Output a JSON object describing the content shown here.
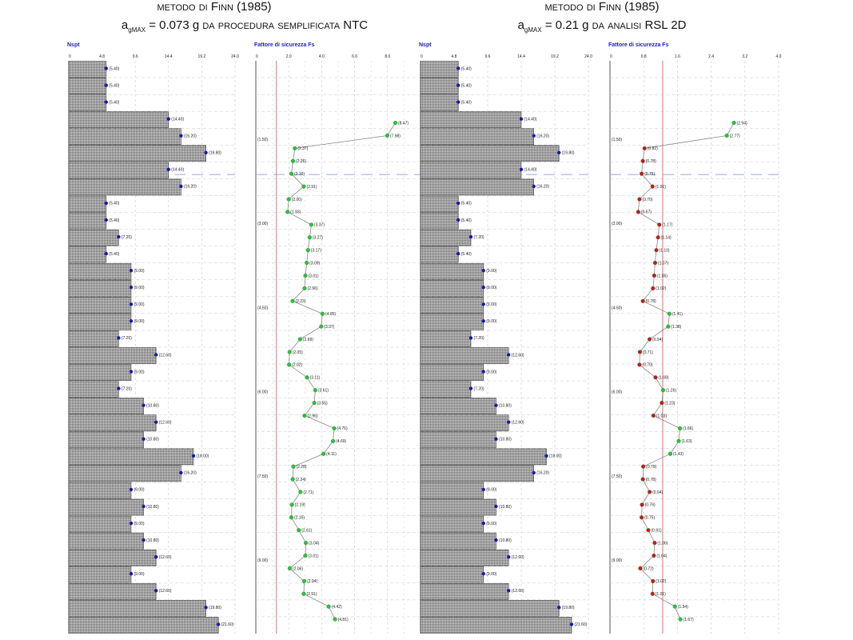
{
  "colors": {
    "axis_title": "#1a1adc",
    "bar_fill": "#9a9a9a",
    "bar_dot": "#1a1aa8",
    "fs_safe": "#27c43a",
    "fs_unsafe": "#c31c1c",
    "fs_line": "#888888",
    "threshold": "#e28a8a",
    "grid": "#c8c8c8",
    "water_table": "#9aa8ee"
  },
  "headers": [
    {
      "line1_a": "metodo di ",
      "line1_b": "Finn",
      "line1_c": " (1985)",
      "a": "a",
      "sub": "gMAX",
      "eq": " = 0.073 g ",
      "tail": "da procedura semplificata NTC"
    },
    {
      "line1_a": "metodo di ",
      "line1_b": "Finn",
      "line1_c": " (1985)",
      "a": "a",
      "sub": "gMAX",
      "eq": " = 0.21 g ",
      "tail": "da analisi RSL 2D"
    }
  ],
  "chart_data": [
    {
      "type": "bar",
      "orientation": "horizontal",
      "title": "Nspt",
      "xlim": [
        0,
        24
      ],
      "ticks": [
        "0",
        "4.8",
        "9.6",
        "14.4",
        "19.2",
        "24.0"
      ],
      "depth_labels": [
        "(1.50)",
        "(3.00)",
        "(4.50)",
        "(6.00)",
        "(7.50)",
        "(9.00)"
      ],
      "values": [
        5.4,
        5.4,
        5.4,
        14.4,
        16.2,
        19.8,
        14.4,
        16.2,
        5.4,
        5.4,
        7.2,
        5.4,
        9.0,
        9.0,
        9.0,
        9.0,
        7.2,
        12.6,
        9.0,
        7.2,
        10.8,
        12.6,
        10.8,
        18.0,
        16.2,
        9.0,
        10.8,
        9.0,
        10.8,
        12.6,
        9.0,
        12.6,
        19.8,
        21.6
      ],
      "labels": [
        "(5.40)",
        "(5.40)",
        "(5.40)",
        "(14.40)",
        "(16.20)",
        "(19.80)",
        "(14.40)",
        "(16.20)",
        "(5.40)",
        "(5.40)",
        "(7.20)",
        "(5.40)",
        "(9.00)",
        "(9.00)",
        "(9.00)",
        "(9.00)",
        "(7.20)",
        "(12.60)",
        "(9.00)",
        "(7.20)",
        "(10.80)",
        "(12.60)",
        "(10.80)",
        "(18.00)",
        "(16.20)",
        "(9.00)",
        "(10.80)",
        "(9.00)",
        "(10.80)",
        "(12.60)",
        "(9.00)",
        "(12.60)",
        "(19.80)",
        "(21.60)"
      ]
    },
    {
      "type": "line",
      "title": "Fattore di sicurezza Fs",
      "xlim": [
        0,
        10
      ],
      "threshold": 1.25,
      "ticks": [
        "0",
        "2.0",
        "4.0",
        "6.0",
        "8.0"
      ],
      "depth_labels": [
        "(1.50)",
        "(3.00)",
        "(4.50)",
        "(6.00)",
        "(7.50)",
        "(9.00)"
      ],
      "points": [
        {
          "d": 0.39,
          "v": 8.47,
          "l": "(8.47)"
        },
        {
          "d": 0.47,
          "v": 7.98,
          "l": "(7.98)"
        },
        {
          "d": 0.55,
          "v": 2.37,
          "l": "(2.37)"
        },
        {
          "d": 0.63,
          "v": 2.26,
          "l": "(2.26)"
        },
        {
          "d": 0.71,
          "v": 2.16,
          "l": "(2.16)"
        },
        {
          "d": 0.79,
          "v": 2.91,
          "l": "(2.91)"
        },
        {
          "d": 0.87,
          "v": 2.0,
          "l": "(2.00)"
        },
        {
          "d": 0.95,
          "v": 1.93,
          "l": "(1.93)"
        },
        {
          "d": 1.03,
          "v": 3.37,
          "l": "(3.37)"
        },
        {
          "d": 1.11,
          "v": 3.27,
          "l": "(3.27)"
        },
        {
          "d": 1.19,
          "v": 3.17,
          "l": "(3.17)"
        },
        {
          "d": 1.27,
          "v": 3.09,
          "l": "(3.09)"
        },
        {
          "d": 1.35,
          "v": 3.01,
          "l": "(3.01)"
        },
        {
          "d": 1.43,
          "v": 2.96,
          "l": "(2.96)"
        },
        {
          "d": 1.51,
          "v": 2.23,
          "l": "(2.23)"
        },
        {
          "d": 1.59,
          "v": 4.05,
          "l": "(4.05)"
        },
        {
          "d": 1.67,
          "v": 3.97,
          "l": "(3.97)"
        },
        {
          "d": 1.75,
          "v": 2.69,
          "l": "(2.69)"
        },
        {
          "d": 1.83,
          "v": 2.05,
          "l": "(2.05)"
        },
        {
          "d": 1.91,
          "v": 2.02,
          "l": "(2.02)"
        },
        {
          "d": 1.99,
          "v": 3.11,
          "l": "(3.11)"
        },
        {
          "d": 2.07,
          "v": 3.61,
          "l": "(3.61)"
        },
        {
          "d": 2.15,
          "v": 3.55,
          "l": "(3.55)"
        },
        {
          "d": 2.23,
          "v": 2.96,
          "l": "(2.96)"
        },
        {
          "d": 2.31,
          "v": 4.76,
          "l": "(4.76)"
        },
        {
          "d": 2.39,
          "v": 4.69,
          "l": "(4.69)"
        },
        {
          "d": 2.47,
          "v": 4.11,
          "l": "(4.11)"
        },
        {
          "d": 2.55,
          "v": 2.28,
          "l": "(2.28)"
        },
        {
          "d": 2.63,
          "v": 2.24,
          "l": "(2.24)"
        },
        {
          "d": 2.71,
          "v": 2.71,
          "l": "(2.71)"
        },
        {
          "d": 2.79,
          "v": 2.19,
          "l": "(2.19)"
        },
        {
          "d": 2.87,
          "v": 2.16,
          "l": "(2.16)"
        },
        {
          "d": 2.95,
          "v": 2.61,
          "l": "(2.61)"
        },
        {
          "d": 3.03,
          "v": 3.04,
          "l": "(3.04)"
        },
        {
          "d": 3.11,
          "v": 3.01,
          "l": "(3.01)"
        },
        {
          "d": 3.19,
          "v": 2.06,
          "l": "(2.06)"
        },
        {
          "d": 3.27,
          "v": 2.94,
          "l": "(2.94)"
        },
        {
          "d": 3.35,
          "v": 2.91,
          "l": "(2.91)"
        },
        {
          "d": 3.43,
          "v": 4.42,
          "l": "(4.42)"
        },
        {
          "d": 3.51,
          "v": 4.81,
          "l": "(4.81)"
        }
      ]
    },
    {
      "type": "bar",
      "orientation": "horizontal",
      "title": "Nspt",
      "xlim": [
        0,
        24
      ],
      "ticks": [
        "0",
        "4.8",
        "9.6",
        "14.4",
        "19.2",
        "24.0"
      ],
      "depth_labels": [
        "(1.50)",
        "(3.00)",
        "(4.50)",
        "(6.00)",
        "(7.50)",
        "(9.00)"
      ],
      "values": [
        5.4,
        5.4,
        5.4,
        14.4,
        16.2,
        19.8,
        14.4,
        16.2,
        5.4,
        5.4,
        7.2,
        5.4,
        9.0,
        9.0,
        9.0,
        9.0,
        7.2,
        12.6,
        9.0,
        7.2,
        10.8,
        12.6,
        10.8,
        18.0,
        16.2,
        9.0,
        10.8,
        9.0,
        10.8,
        12.6,
        9.0,
        12.6,
        19.8,
        21.6
      ],
      "labels": [
        "(5.40)",
        "(5.40)",
        "(5.40)",
        "(14.40)",
        "(16.20)",
        "(19.80)",
        "(14.40)",
        "(16.20)",
        "(5.40)",
        "(5.40)",
        "(7.20)",
        "(5.40)",
        "(9.00)",
        "(9.00)",
        "(9.00)",
        "(9.00)",
        "(7.20)",
        "(12.60)",
        "(9.00)",
        "(7.20)",
        "(10.80)",
        "(12.60)",
        "(10.80)",
        "(18.00)",
        "(16.20)",
        "(9.00)",
        "(10.80)",
        "(9.00)",
        "(10.80)",
        "(12.60)",
        "(9.00)",
        "(12.60)",
        "(19.80)",
        "(21.60)"
      ]
    },
    {
      "type": "line",
      "title": "Fattore di sicurezza Fs",
      "xlim": [
        0,
        4
      ],
      "threshold": 1.25,
      "ticks": [
        "0",
        "0.8",
        "1.6",
        "2.4",
        "3.2",
        "4.0"
      ],
      "depth_labels": [
        "(1.50)",
        "(3.00)",
        "(4.50)",
        "(6.00)",
        "(7.50)",
        "(9.00)"
      ],
      "points": [
        {
          "d": 0.39,
          "v": 2.94,
          "l": "(2.94)"
        },
        {
          "d": 0.47,
          "v": 2.77,
          "l": "(2.77)"
        },
        {
          "d": 0.55,
          "v": 0.82,
          "l": "(0.82)"
        },
        {
          "d": 0.63,
          "v": 0.78,
          "l": "(0.78)"
        },
        {
          "d": 0.71,
          "v": 0.75,
          "l": "(0.75)"
        },
        {
          "d": 0.79,
          "v": 1.01,
          "l": "(1.01)"
        },
        {
          "d": 0.87,
          "v": 0.7,
          "l": "(0.70)"
        },
        {
          "d": 0.95,
          "v": 0.67,
          "l": "(0.67)"
        },
        {
          "d": 1.03,
          "v": 1.17,
          "l": "(1.17)"
        },
        {
          "d": 1.11,
          "v": 1.14,
          "l": "(1.14)"
        },
        {
          "d": 1.19,
          "v": 1.1,
          "l": "(1.10)"
        },
        {
          "d": 1.27,
          "v": 1.07,
          "l": "(1.07)"
        },
        {
          "d": 1.35,
          "v": 1.05,
          "l": "(1.05)"
        },
        {
          "d": 1.43,
          "v": 1.02,
          "l": "(1.02)"
        },
        {
          "d": 1.51,
          "v": 0.78,
          "l": "(0.78)"
        },
        {
          "d": 1.59,
          "v": 1.41,
          "l": "(1.41)"
        },
        {
          "d": 1.67,
          "v": 1.38,
          "l": "(1.38)"
        },
        {
          "d": 1.75,
          "v": 0.94,
          "l": "(0.94)"
        },
        {
          "d": 1.83,
          "v": 0.71,
          "l": "(0.71)"
        },
        {
          "d": 1.91,
          "v": 0.7,
          "l": "(0.70)"
        },
        {
          "d": 1.99,
          "v": 1.08,
          "l": "(1.08)"
        },
        {
          "d": 2.07,
          "v": 1.26,
          "l": "(1.26)"
        },
        {
          "d": 2.15,
          "v": 1.23,
          "l": "(1.23)"
        },
        {
          "d": 2.23,
          "v": 1.03,
          "l": "(1.03)"
        },
        {
          "d": 2.31,
          "v": 1.66,
          "l": "(1.66)"
        },
        {
          "d": 2.39,
          "v": 1.63,
          "l": "(1.63)"
        },
        {
          "d": 2.47,
          "v": 1.43,
          "l": "(1.43)"
        },
        {
          "d": 2.55,
          "v": 0.79,
          "l": "(0.79)"
        },
        {
          "d": 2.63,
          "v": 0.78,
          "l": "(0.78)"
        },
        {
          "d": 2.71,
          "v": 0.94,
          "l": "(0.94)"
        },
        {
          "d": 2.79,
          "v": 0.76,
          "l": "(0.76)"
        },
        {
          "d": 2.87,
          "v": 0.75,
          "l": "(0.75)"
        },
        {
          "d": 2.95,
          "v": 0.91,
          "l": "(0.91)"
        },
        {
          "d": 3.03,
          "v": 1.06,
          "l": "(1.06)"
        },
        {
          "d": 3.11,
          "v": 1.04,
          "l": "(1.04)"
        },
        {
          "d": 3.19,
          "v": 0.72,
          "l": "(0.72)"
        },
        {
          "d": 3.27,
          "v": 1.02,
          "l": "(1.02)"
        },
        {
          "d": 3.35,
          "v": 1.01,
          "l": "(1.01)"
        },
        {
          "d": 3.43,
          "v": 1.54,
          "l": "(1.54)"
        },
        {
          "d": 3.51,
          "v": 1.67,
          "l": "(1.67)"
        }
      ]
    }
  ]
}
